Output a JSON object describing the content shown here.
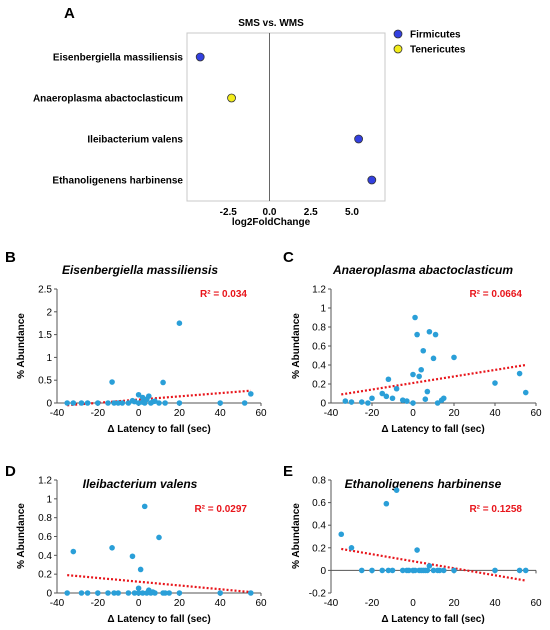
{
  "panel_a": {
    "letter": "A",
    "chart_data": {
      "type": "scatter",
      "title": "SMS vs. WMS",
      "xlabel": "log2FoldChange",
      "xlim": [
        -5,
        7
      ],
      "xticks": [
        "-2.5",
        "0.0",
        "2.5",
        "5.0"
      ],
      "xtick_values": [
        -2.5,
        0,
        2.5,
        5
      ],
      "categories": [
        "Eisenbergiella massiliensis",
        "Anaeroplasma abactoclasticum",
        "Ileibacterium valens",
        "Ethanoligenens harbinense"
      ],
      "points": [
        {
          "label": "Eisenbergiella massiliensis",
          "x": -4.2,
          "group": "Firmicutes"
        },
        {
          "label": "Anaeroplasma abactoclasticum",
          "x": -2.3,
          "group": "Tenericutes"
        },
        {
          "label": "Ileibacterium valens",
          "x": 5.4,
          "group": "Firmicutes"
        },
        {
          "label": "Ethanoligenens harbinense",
          "x": 6.2,
          "group": "Firmicutes"
        }
      ],
      "legend": [
        {
          "name": "Firmicutes",
          "color": "#3340e0"
        },
        {
          "name": "Tenericutes",
          "color": "#f2ec1b"
        }
      ],
      "legend_position": "right",
      "grid": false
    }
  },
  "scatter_panels": [
    {
      "letter": "B",
      "chart_data": {
        "type": "scatter",
        "title": "Eisenbergiella massiliensis",
        "xlabel": "Δ Latency to fall (sec)",
        "ylabel": "% Abundance",
        "xlim": [
          -40,
          60
        ],
        "ylim": [
          0,
          2.5
        ],
        "xticks": [
          "-20",
          "0",
          "20",
          "40",
          "60"
        ],
        "xtick_values": [
          -20,
          0,
          20,
          40,
          60
        ],
        "yticks": [
          "0",
          "0.5",
          "1",
          "1.5",
          "2",
          "2.5"
        ],
        "ytick_values": [
          0,
          0.5,
          1,
          1.5,
          2,
          2.5
        ],
        "r2": "R² = 0.034",
        "trendline": {
          "x1": -35,
          "y1": -0.05,
          "x2": 55,
          "y2": 0.27
        },
        "points": [
          [
            -35,
            0.0
          ],
          [
            -32,
            0.0
          ],
          [
            -28,
            0.0
          ],
          [
            -25,
            0.0
          ],
          [
            -20,
            0.0
          ],
          [
            -15,
            0.0
          ],
          [
            -13,
            0.46
          ],
          [
            -12,
            0.0
          ],
          [
            -10,
            0.0
          ],
          [
            -8,
            0.0
          ],
          [
            -5,
            0.0
          ],
          [
            -3,
            0.05
          ],
          [
            -2,
            0.03
          ],
          [
            0,
            0.0
          ],
          [
            0,
            0.18
          ],
          [
            2,
            0.02
          ],
          [
            2,
            0.12
          ],
          [
            3,
            0.0
          ],
          [
            4,
            0.08
          ],
          [
            5,
            0.15
          ],
          [
            6,
            0.0
          ],
          [
            7,
            0.03
          ],
          [
            8,
            0.04
          ],
          [
            10,
            0.0
          ],
          [
            12,
            0.45
          ],
          [
            13,
            0.0
          ],
          [
            20,
            1.75
          ],
          [
            20,
            0.0
          ],
          [
            40,
            0.0
          ],
          [
            52,
            0.0
          ],
          [
            55,
            0.2
          ]
        ]
      }
    },
    {
      "letter": "C",
      "chart_data": {
        "type": "scatter",
        "title": "Anaeroplasma abactoclasticum",
        "xlabel": "Δ Latency to fall (sec)",
        "ylabel": "% Abundance",
        "xlim": [
          -40,
          60
        ],
        "ylim": [
          0,
          1.2
        ],
        "xticks": [
          "-20",
          "0",
          "20",
          "40",
          "60"
        ],
        "xtick_values": [
          -20,
          0,
          20,
          40,
          60
        ],
        "yticks": [
          "0",
          "0.2",
          "0.4",
          "0.6",
          "0.8",
          "1",
          "1.2"
        ],
        "ytick_values": [
          0,
          0.2,
          0.4,
          0.6,
          0.8,
          1.0,
          1.2
        ],
        "r2": "R² = 0.0664",
        "trendline": {
          "x1": -35,
          "y1": 0.09,
          "x2": 55,
          "y2": 0.4
        },
        "points": [
          [
            -33,
            0.02
          ],
          [
            -30,
            0.01
          ],
          [
            -25,
            0.01
          ],
          [
            -22,
            0.0
          ],
          [
            -20,
            0.05
          ],
          [
            -15,
            0.1
          ],
          [
            -13,
            0.07
          ],
          [
            -12,
            0.25
          ],
          [
            -10,
            0.05
          ],
          [
            -8,
            0.15
          ],
          [
            -5,
            0.03
          ],
          [
            -3,
            0.02
          ],
          [
            0,
            0.0
          ],
          [
            0,
            0.3
          ],
          [
            1,
            0.9
          ],
          [
            2,
            0.72
          ],
          [
            3,
            0.28
          ],
          [
            4,
            0.35
          ],
          [
            5,
            0.55
          ],
          [
            6,
            0.04
          ],
          [
            7,
            0.12
          ],
          [
            8,
            0.75
          ],
          [
            10,
            0.47
          ],
          [
            11,
            0.72
          ],
          [
            12,
            0.0
          ],
          [
            14,
            0.03
          ],
          [
            15,
            0.05
          ],
          [
            20,
            0.48
          ],
          [
            40,
            0.21
          ],
          [
            52,
            0.31
          ],
          [
            55,
            0.11
          ]
        ]
      }
    },
    {
      "letter": "D",
      "chart_data": {
        "type": "scatter",
        "title": "Ileibacterium valens",
        "xlabel": "Δ Latency to fall (sec)",
        "ylabel": "% Abundance",
        "xlim": [
          -40,
          60
        ],
        "ylim": [
          0,
          1.2
        ],
        "xticks": [
          "-20",
          "0",
          "20",
          "40",
          "60"
        ],
        "xtick_values": [
          -20,
          0,
          20,
          40,
          60
        ],
        "yticks": [
          "0",
          "0.2",
          "0.4",
          "0.6",
          "0.8",
          "1",
          "1.2"
        ],
        "ytick_values": [
          0,
          0.2,
          0.4,
          0.6,
          0.8,
          1.0,
          1.2
        ],
        "r2": "R² = 0.0297",
        "trendline": {
          "x1": -35,
          "y1": 0.19,
          "x2": 55,
          "y2": 0.01
        },
        "points": [
          [
            -35,
            0.0
          ],
          [
            -32,
            0.44
          ],
          [
            -28,
            0.0
          ],
          [
            -25,
            0.0
          ],
          [
            -20,
            0.0
          ],
          [
            -15,
            0.0
          ],
          [
            -13,
            0.48
          ],
          [
            -12,
            0.0
          ],
          [
            -10,
            0.0
          ],
          [
            -5,
            0.0
          ],
          [
            -3,
            0.39
          ],
          [
            -2,
            0.0
          ],
          [
            0,
            0.05
          ],
          [
            0,
            0.0
          ],
          [
            1,
            0.25
          ],
          [
            2,
            0.0
          ],
          [
            3,
            0.92
          ],
          [
            4,
            0.0
          ],
          [
            5,
            0.03
          ],
          [
            6,
            0.0
          ],
          [
            7,
            0.01
          ],
          [
            8,
            0.0
          ],
          [
            10,
            0.59
          ],
          [
            12,
            0.0
          ],
          [
            13,
            0.0
          ],
          [
            15,
            0.0
          ],
          [
            20,
            0.0
          ],
          [
            40,
            0.0
          ],
          [
            55,
            0.0
          ]
        ]
      }
    },
    {
      "letter": "E",
      "chart_data": {
        "type": "scatter",
        "title": "Ethanoligenens harbinense",
        "xlabel": "Δ Latency to fall (sec)",
        "ylabel": "% Abundance",
        "xlim": [
          -40,
          60
        ],
        "ylim": [
          -0.2,
          0.8
        ],
        "xticks": [
          "-20",
          "0",
          "20",
          "40",
          "60"
        ],
        "xtick_values": [
          -20,
          0,
          20,
          40,
          60
        ],
        "yticks": [
          "-0.2",
          "0",
          "0.2",
          "0.4",
          "0.6",
          "0.8"
        ],
        "ytick_values": [
          -0.2,
          0,
          0.2,
          0.4,
          0.6,
          0.8
        ],
        "r2": "R² = 0.1258",
        "trendline": {
          "x1": -35,
          "y1": 0.19,
          "x2": 55,
          "y2": -0.09
        },
        "points": [
          [
            -35,
            0.32
          ],
          [
            -30,
            0.2
          ],
          [
            -25,
            0.0
          ],
          [
            -20,
            0.0
          ],
          [
            -15,
            0.0
          ],
          [
            -13,
            0.59
          ],
          [
            -12,
            0.0
          ],
          [
            -10,
            0.0
          ],
          [
            -8,
            0.71
          ],
          [
            -5,
            0.0
          ],
          [
            -3,
            0.0
          ],
          [
            -2,
            0.0
          ],
          [
            0,
            0.0
          ],
          [
            1,
            0.0
          ],
          [
            2,
            0.18
          ],
          [
            3,
            0.0
          ],
          [
            4,
            0.0
          ],
          [
            5,
            0.0
          ],
          [
            6,
            0.0
          ],
          [
            7,
            0.0
          ],
          [
            8,
            0.04
          ],
          [
            10,
            0.0
          ],
          [
            12,
            0.0
          ],
          [
            13,
            0.0
          ],
          [
            15,
            0.0
          ],
          [
            20,
            0.0
          ],
          [
            40,
            0.0
          ],
          [
            52,
            0.0
          ],
          [
            55,
            0.0
          ]
        ]
      }
    }
  ],
  "colors": {
    "point": "#2a9fd8",
    "trend": "#e8151b",
    "axis": "#555555"
  }
}
